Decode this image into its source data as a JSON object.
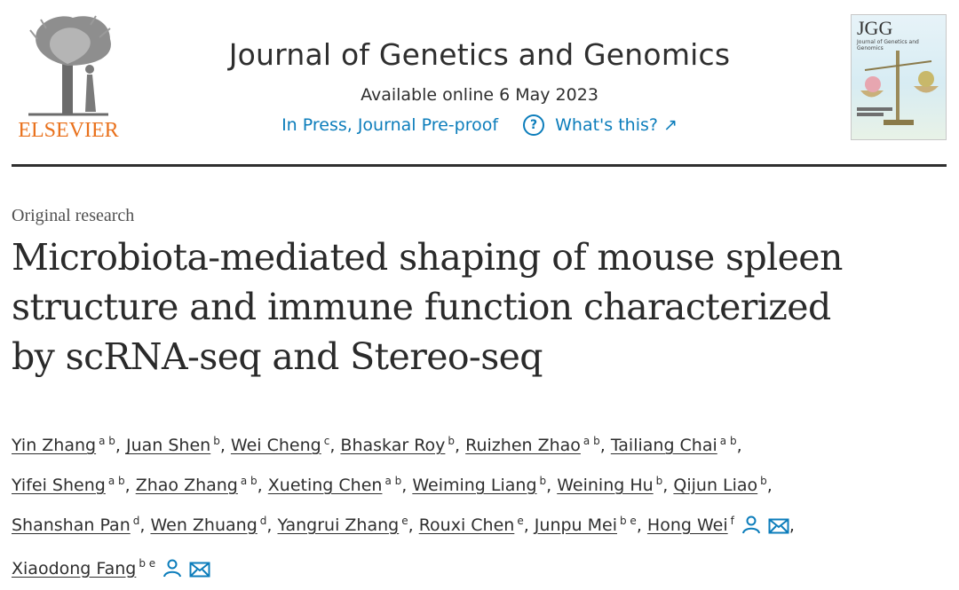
{
  "publisher": {
    "name": "ELSEVIER"
  },
  "journal": {
    "title": "Journal of Genetics and Genomics",
    "availability": "Available online 6 May 2023",
    "status": "In Press, Journal Pre-proof",
    "whats_this": "What's this? ↗"
  },
  "cover": {
    "title": "JGG",
    "subtitle": "Journal of Genetics and Genomics"
  },
  "article": {
    "type": "Original research",
    "title_lines": [
      "Microbiota-mediated shaping of mouse spleen",
      "structure and immune function characterized",
      "by scRNA-seq and Stereo-seq"
    ]
  },
  "authors": [
    {
      "name": "Yin Zhang",
      "aff": "a b"
    },
    {
      "name": "Juan Shen",
      "aff": "b"
    },
    {
      "name": "Wei Cheng",
      "aff": "c"
    },
    {
      "name": "Bhaskar Roy",
      "aff": "b"
    },
    {
      "name": "Ruizhen Zhao",
      "aff": "a b"
    },
    {
      "name": "Tailiang Chai",
      "aff": "a b"
    },
    {
      "name": "Yifei Sheng",
      "aff": "a b"
    },
    {
      "name": "Zhao Zhang",
      "aff": "a b"
    },
    {
      "name": "Xueting Chen",
      "aff": "a b"
    },
    {
      "name": "Weiming Liang",
      "aff": "b"
    },
    {
      "name": "Weining Hu",
      "aff": "b"
    },
    {
      "name": "Qijun Liao",
      "aff": "b"
    },
    {
      "name": "Shanshan Pan",
      "aff": "d"
    },
    {
      "name": "Wen Zhuang",
      "aff": "d"
    },
    {
      "name": "Yangrui Zhang",
      "aff": "e"
    },
    {
      "name": "Rouxi Chen",
      "aff": "e"
    },
    {
      "name": "Junpu Mei",
      "aff": "b e"
    },
    {
      "name": "Hong Wei",
      "aff": "f",
      "icons": [
        "person-icon",
        "envelope-icon"
      ]
    },
    {
      "name": "Xiaodong Fang",
      "aff": "b e",
      "icons": [
        "person-icon",
        "envelope-icon"
      ]
    }
  ],
  "colors": {
    "link": "#0c7dbb",
    "elsevier": "#e9711c"
  }
}
